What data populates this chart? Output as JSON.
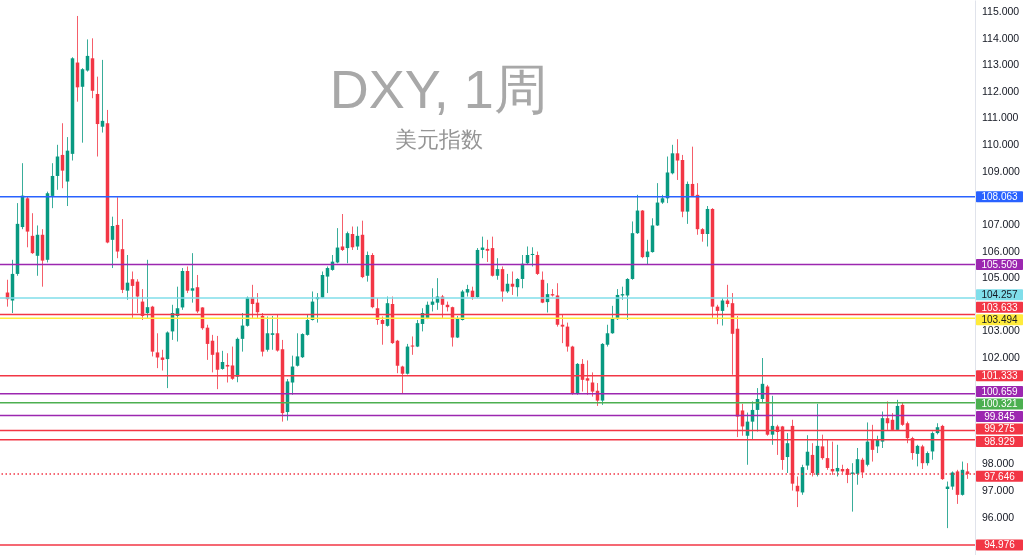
{
  "chart_data": {
    "type": "candlestick",
    "title": "DXY, 1周",
    "subtitle": "美元指数",
    "categories": [
      null,
      null,
      null,
      null,
      null,
      null,
      null,
      null,
      null,
      null,
      null,
      null,
      null,
      null,
      null,
      null,
      null,
      null,
      null,
      null,
      null,
      null,
      null,
      null,
      null,
      null,
      null,
      null,
      null,
      null,
      null,
      null,
      null,
      null,
      null,
      null,
      null,
      null,
      null,
      null,
      null,
      null,
      null,
      null,
      null,
      null,
      null,
      null,
      null,
      null,
      null,
      null,
      null,
      null,
      null,
      null,
      null,
      null,
      null,
      null,
      null,
      null,
      null,
      null,
      null,
      null,
      null,
      null,
      null,
      null,
      null,
      null,
      null,
      null,
      null,
      null,
      null,
      null,
      null,
      null,
      null,
      null,
      null,
      null,
      null,
      null,
      null,
      null,
      null,
      null,
      null,
      null,
      null,
      null,
      null,
      null,
      null,
      null,
      null,
      null,
      null,
      null,
      null,
      null,
      null,
      null,
      null,
      null,
      null,
      null,
      null,
      null,
      null,
      null,
      null,
      null,
      null,
      null,
      null,
      null,
      null,
      null,
      null,
      null,
      null,
      null,
      null,
      null,
      null,
      null,
      null,
      null,
      null,
      null,
      null,
      null,
      null,
      null,
      null,
      null,
      null,
      null,
      null,
      null,
      null,
      null,
      null,
      null,
      null,
      null,
      null,
      null,
      null,
      null,
      null,
      null,
      null,
      null,
      null,
      null,
      null,
      null,
      null,
      null,
      null,
      null,
      null,
      null,
      null,
      null,
      null,
      null,
      null,
      null,
      null,
      null,
      null,
      null,
      null,
      null,
      null,
      null,
      null,
      null,
      null,
      null,
      null,
      null,
      null,
      null,
      null,
      null,
      null
    ],
    "ohlc": [
      [
        104.46,
        104.94,
        103.93,
        104.21
      ],
      [
        104.16,
        105.69,
        103.69,
        105.16
      ],
      [
        105.16,
        107.82,
        105.09,
        107.04
      ],
      [
        106.92,
        109.32,
        106.84,
        108.1
      ],
      [
        108.0,
        108.06,
        106.16,
        106.75
      ],
      [
        106.59,
        107.44,
        105.91,
        105.94
      ],
      [
        105.84,
        106.98,
        105.09,
        106.63
      ],
      [
        106.63,
        106.84,
        104.68,
        105.66
      ],
      [
        105.69,
        108.25,
        105.59,
        108.19
      ],
      [
        108.09,
        109.32,
        107.63,
        108.84
      ],
      [
        108.84,
        110.01,
        108.32,
        109.57
      ],
      [
        109.63,
        110.82,
        108.38,
        109.04
      ],
      [
        108.63,
        110.3,
        107.71,
        109.79
      ],
      [
        109.67,
        113.3,
        109.42,
        113.26
      ],
      [
        113.1,
        114.85,
        111.63,
        112.17
      ],
      [
        112.19,
        112.89,
        110.09,
        112.85
      ],
      [
        112.8,
        113.97,
        112.76,
        113.35
      ],
      [
        113.26,
        114.01,
        111.76,
        112.04
      ],
      [
        111.92,
        112.57,
        109.57,
        110.79
      ],
      [
        110.69,
        113.2,
        110.47,
        110.91
      ],
      [
        110.82,
        111.32,
        106.31,
        106.34
      ],
      [
        106.44,
        107.31,
        105.38,
        106.96
      ],
      [
        107.0,
        108.04,
        105.75,
        106.0
      ],
      [
        106.09,
        107.22,
        104.44,
        104.56
      ],
      [
        104.53,
        105.87,
        104.19,
        104.83
      ],
      [
        104.96,
        105.25,
        103.5,
        104.71
      ],
      [
        104.87,
        104.96,
        103.69,
        104.31
      ],
      [
        104.12,
        104.59,
        103.43,
        103.58
      ],
      [
        103.69,
        105.69,
        103.5,
        103.91
      ],
      [
        103.93,
        103.96,
        102.06,
        102.24
      ],
      [
        102.21,
        102.93,
        101.62,
        102.02
      ],
      [
        102.02,
        102.31,
        101.53,
        101.93
      ],
      [
        101.96,
        103.0,
        100.87,
        102.96
      ],
      [
        103.0,
        104.0,
        102.68,
        103.69
      ],
      [
        103.58,
        104.68,
        102.62,
        103.87
      ],
      [
        103.9,
        105.38,
        103.81,
        105.27
      ],
      [
        105.27,
        105.44,
        104.44,
        104.53
      ],
      [
        104.53,
        105.94,
        104.08,
        104.62
      ],
      [
        104.66,
        105.12,
        103.69,
        103.75
      ],
      [
        103.9,
        103.91,
        103.06,
        103.12
      ],
      [
        103.14,
        103.25,
        101.93,
        102.53
      ],
      [
        102.65,
        102.87,
        101.46,
        102.12
      ],
      [
        102.21,
        102.83,
        100.83,
        101.56
      ],
      [
        101.59,
        102.27,
        101.56,
        101.85
      ],
      [
        101.74,
        102.18,
        101.08,
        101.68
      ],
      [
        101.72,
        102.43,
        101.18,
        101.22
      ],
      [
        101.3,
        102.77,
        101.09,
        102.72
      ],
      [
        102.72,
        103.69,
        102.24,
        103.22
      ],
      [
        103.21,
        104.31,
        103.18,
        104.27
      ],
      [
        104.27,
        104.75,
        103.5,
        104.03
      ],
      [
        104.08,
        104.44,
        103.5,
        103.72
      ],
      [
        103.58,
        103.69,
        102.06,
        102.24
      ],
      [
        102.31,
        103.56,
        102.24,
        102.93
      ],
      [
        102.87,
        103.58,
        102.31,
        102.93
      ],
      [
        102.93,
        103.62,
        102.24,
        102.28
      ],
      [
        102.33,
        102.68,
        99.61,
        99.93
      ],
      [
        99.97,
        101.21,
        99.65,
        101.12
      ],
      [
        101.08,
        102.09,
        100.62,
        101.68
      ],
      [
        101.71,
        102.93,
        101.68,
        102.06
      ],
      [
        102.03,
        102.93,
        102.0,
        102.9
      ],
      [
        102.87,
        103.62,
        102.84,
        103.43
      ],
      [
        103.43,
        104.5,
        103.41,
        104.12
      ],
      [
        104.21,
        104.44,
        103.33,
        104.29
      ],
      [
        104.27,
        105.25,
        104.25,
        105.12
      ],
      [
        105.06,
        105.44,
        104.44,
        105.38
      ],
      [
        105.31,
        105.87,
        105.28,
        105.62
      ],
      [
        105.59,
        106.88,
        105.56,
        106.15
      ],
      [
        106.19,
        107.41,
        106.02,
        106.06
      ],
      [
        106.13,
        106.75,
        105.56,
        106.69
      ],
      [
        106.66,
        106.94,
        106.06,
        106.16
      ],
      [
        106.19,
        106.94,
        106.06,
        106.59
      ],
      [
        106.63,
        107.16,
        105.0,
        105.04
      ],
      [
        105.09,
        106.0,
        104.87,
        105.87
      ],
      [
        105.87,
        105.94,
        103.87,
        103.91
      ],
      [
        103.87,
        104.25,
        103.25,
        103.43
      ],
      [
        103.43,
        103.56,
        102.5,
        103.28
      ],
      [
        103.21,
        104.31,
        103.18,
        104.06
      ],
      [
        104.03,
        104.31,
        102.53,
        102.56
      ],
      [
        102.65,
        102.68,
        101.43,
        101.71
      ],
      [
        101.68,
        101.71,
        100.68,
        101.41
      ],
      [
        101.41,
        102.53,
        101.38,
        102.43
      ],
      [
        102.47,
        102.81,
        102.12,
        102.43
      ],
      [
        102.43,
        103.43,
        102.41,
        103.31
      ],
      [
        103.28,
        103.87,
        103.0,
        103.69
      ],
      [
        103.5,
        104.12,
        103.46,
        104.0
      ],
      [
        104.0,
        104.62,
        103.75,
        104.12
      ],
      [
        104.08,
        105.0,
        103.81,
        104.31
      ],
      [
        104.31,
        104.37,
        103.5,
        104.0
      ],
      [
        104.0,
        104.12,
        103.75,
        103.91
      ],
      [
        103.91,
        103.93,
        102.43,
        102.77
      ],
      [
        102.77,
        103.58,
        102.75,
        103.5
      ],
      [
        103.43,
        104.56,
        103.41,
        104.5
      ],
      [
        104.46,
        104.75,
        104.31,
        104.59
      ],
      [
        104.53,
        104.68,
        104.19,
        104.29
      ],
      [
        104.29,
        106.13,
        104.25,
        106.06
      ],
      [
        106.06,
        106.56,
        105.75,
        106.15
      ],
      [
        106.1,
        106.44,
        105.61,
        106.03
      ],
      [
        106.13,
        106.56,
        105.06,
        105.09
      ],
      [
        105.09,
        105.75,
        104.94,
        105.34
      ],
      [
        105.34,
        105.44,
        104.12,
        104.5
      ],
      [
        104.5,
        105.16,
        104.44,
        104.79
      ],
      [
        104.79,
        105.25,
        104.37,
        104.68
      ],
      [
        104.66,
        105.0,
        104.31,
        104.97
      ],
      [
        104.97,
        105.87,
        104.62,
        105.54
      ],
      [
        105.56,
        106.19,
        105.5,
        105.87
      ],
      [
        105.87,
        106.16,
        105.44,
        105.91
      ],
      [
        105.87,
        106.0,
        105.12,
        105.16
      ],
      [
        104.94,
        105.25,
        104.06,
        104.08
      ],
      [
        104.1,
        104.81,
        103.71,
        104.4
      ],
      [
        104.4,
        104.59,
        104.31,
        104.35
      ],
      [
        104.35,
        104.81,
        103.18,
        103.25
      ],
      [
        103.25,
        103.62,
        102.56,
        103.18
      ],
      [
        103.18,
        103.33,
        102.24,
        102.43
      ],
      [
        102.43,
        102.46,
        100.62,
        100.68
      ],
      [
        100.68,
        101.81,
        100.62,
        101.78
      ],
      [
        101.78,
        101.96,
        100.74,
        101.18
      ],
      [
        101.24,
        101.91,
        100.62,
        101.15
      ],
      [
        101.08,
        101.46,
        100.55,
        100.74
      ],
      [
        100.77,
        101.06,
        100.2,
        100.4
      ],
      [
        100.4,
        102.56,
        100.24,
        102.53
      ],
      [
        102.5,
        103.25,
        102.43,
        102.93
      ],
      [
        102.93,
        103.96,
        102.91,
        103.5
      ],
      [
        103.46,
        104.59,
        103.43,
        104.37
      ],
      [
        104.35,
        104.68,
        104.19,
        104.4
      ],
      [
        104.35,
        105.0,
        103.43,
        104.97
      ],
      [
        104.97,
        107.13,
        104.94,
        106.69
      ],
      [
        106.69,
        108.13,
        106.66,
        107.54
      ],
      [
        107.54,
        107.56,
        105.75,
        105.79
      ],
      [
        105.79,
        106.44,
        105.5,
        106.0
      ],
      [
        105.98,
        107.25,
        105.96,
        106.98
      ],
      [
        106.98,
        108.57,
        106.96,
        107.84
      ],
      [
        107.84,
        108.13,
        107.79,
        108.0
      ],
      [
        108.0,
        109.57,
        107.82,
        108.97
      ],
      [
        108.94,
        110.01,
        108.9,
        109.69
      ],
      [
        109.69,
        110.22,
        108.69,
        109.42
      ],
      [
        109.44,
        109.63,
        107.29,
        107.5
      ],
      [
        107.5,
        108.63,
        107.04,
        108.54
      ],
      [
        108.54,
        109.94,
        108.06,
        108.09
      ],
      [
        108.13,
        108.57,
        106.63,
        106.84
      ],
      [
        106.84,
        106.88,
        106.37,
        106.66
      ],
      [
        106.66,
        107.71,
        106.19,
        107.6
      ],
      [
        107.6,
        107.63,
        103.5,
        103.93
      ],
      [
        103.93,
        104.0,
        103.27,
        103.77
      ],
      [
        103.77,
        104.25,
        103.22,
        104.16
      ],
      [
        104.16,
        104.75,
        103.91,
        104.03
      ],
      [
        104.06,
        104.44,
        101.37,
        102.91
      ],
      [
        103.1,
        103.58,
        99.03,
        99.8
      ],
      [
        100.03,
        100.28,
        99.08,
        99.43
      ],
      [
        99.08,
        99.95,
        97.99,
        99.61
      ],
      [
        99.61,
        100.37,
        98.95,
        100.05
      ],
      [
        100.05,
        100.87,
        99.24,
        100.46
      ],
      [
        100.46,
        102.0,
        100.31,
        101.03
      ],
      [
        100.93,
        100.99,
        99.08,
        99.12
      ],
      [
        99.12,
        100.58,
        98.74,
        99.45
      ],
      [
        99.43,
        99.49,
        98.36,
        99.22
      ],
      [
        99.43,
        99.45,
        97.8,
        98.17
      ],
      [
        98.28,
        99.18,
        97.68,
        98.8
      ],
      [
        99.45,
        99.68,
        97.02,
        97.28
      ],
      [
        97.2,
        97.55,
        96.4,
        96.99
      ],
      [
        96.95,
        97.99,
        96.86,
        97.9
      ],
      [
        97.96,
        99.1,
        97.8,
        98.48
      ],
      [
        98.36,
        98.8,
        97.55,
        97.68
      ],
      [
        97.61,
        100.28,
        97.55,
        98.7
      ],
      [
        98.68,
        99.12,
        98.18,
        98.24
      ],
      [
        98.24,
        98.93,
        97.8,
        97.87
      ],
      [
        97.83,
        98.86,
        97.61,
        97.74
      ],
      [
        97.74,
        98.74,
        97.55,
        97.87
      ],
      [
        97.83,
        97.99,
        97.68,
        97.74
      ],
      [
        97.83,
        97.87,
        97.3,
        97.61
      ],
      [
        97.65,
        98.05,
        96.23,
        97.7
      ],
      [
        97.65,
        98.62,
        97.24,
        98.2
      ],
      [
        98.18,
        98.25,
        97.49,
        97.7
      ],
      [
        97.99,
        99.58,
        97.93,
        98.86
      ],
      [
        98.93,
        99.49,
        98.11,
        98.55
      ],
      [
        98.68,
        99.08,
        98.43,
        98.93
      ],
      [
        98.86,
        99.99,
        98.62,
        99.74
      ],
      [
        99.74,
        100.37,
        99.3,
        99.55
      ],
      [
        99.68,
        99.93,
        99.27,
        99.3
      ],
      [
        99.3,
        100.43,
        99.27,
        100.2
      ],
      [
        100.24,
        100.31,
        99.45,
        99.49
      ],
      [
        99.55,
        99.61,
        98.8,
        98.99
      ],
      [
        98.99,
        99.04,
        98.18,
        98.43
      ],
      [
        98.4,
        98.74,
        97.93,
        98.7
      ],
      [
        98.68,
        98.74,
        97.83,
        98.05
      ],
      [
        98.05,
        98.49,
        97.96,
        98.43
      ],
      [
        98.49,
        99.24,
        98.18,
        99.18
      ],
      [
        99.18,
        99.55,
        99.13,
        99.4
      ],
      [
        99.45,
        99.49,
        97.42,
        97.45
      ],
      [
        97.08,
        97.36,
        95.61,
        97.17
      ],
      [
        97.17,
        97.74,
        97.05,
        97.7
      ],
      [
        97.74,
        97.8,
        96.52,
        96.86
      ],
      [
        96.86,
        98.11,
        96.83,
        97.8
      ],
      [
        97.74,
        98.05,
        97.46,
        97.646
      ]
    ],
    "ylim": [
      94.6,
      115.45
    ],
    "yticks": [
      {
        "value": 96,
        "label": "96.000"
      },
      {
        "value": 97,
        "label": "97.000"
      },
      {
        "value": 98,
        "label": "98.000"
      },
      {
        "value": 102,
        "label": "102.000"
      },
      {
        "value": 103,
        "label": "103.000"
      },
      {
        "value": 105,
        "label": "105.000"
      },
      {
        "value": 106,
        "label": "106.000"
      },
      {
        "value": 107,
        "label": "107.000"
      },
      {
        "value": 109,
        "label": "109.000"
      },
      {
        "value": 110,
        "label": "110.000"
      },
      {
        "value": 111,
        "label": "111.000"
      },
      {
        "value": 112,
        "label": "112.000"
      },
      {
        "value": 113,
        "label": "113.000"
      },
      {
        "value": 114,
        "label": "114.000"
      },
      {
        "value": 115,
        "label": "115.000"
      }
    ],
    "ref_lines": [
      {
        "axis": "y",
        "value": 108.063,
        "label": "108.063",
        "color": "#2962ff"
      },
      {
        "axis": "y",
        "value": 105.509,
        "label": "105.509",
        "color": "#9c27b0"
      },
      {
        "axis": "y",
        "value": 104.257,
        "label": "104.257",
        "color": "#80deea"
      },
      {
        "axis": "y",
        "value": 103.633,
        "label": "103.633",
        "color": "#f23645"
      },
      {
        "axis": "y",
        "value": 103.494,
        "label": "103.494",
        "color": "#ffeb3b"
      },
      {
        "axis": "y",
        "value": 101.333,
        "label": "101.333",
        "color": "#f23645"
      },
      {
        "axis": "y",
        "value": 100.659,
        "label": "100.659",
        "color": "#9c27b0"
      },
      {
        "axis": "y",
        "value": 100.321,
        "label": "100.321",
        "color": "#4caf50"
      },
      {
        "axis": "y",
        "value": 99.845,
        "label": "99.845",
        "color": "#9c27b0"
      },
      {
        "axis": "y",
        "value": 99.275,
        "label": "99.275",
        "color": "#f23645"
      },
      {
        "axis": "y",
        "value": 98.929,
        "label": "98.929",
        "color": "#f23645"
      },
      {
        "axis": "y",
        "value": 97.646,
        "label": "97.646",
        "color": "#f23645",
        "line_style": "dotted"
      },
      {
        "axis": "y",
        "value": 94.976,
        "label": "94.976",
        "color": "#f23645"
      }
    ],
    "tick_labels": "y"
  }
}
